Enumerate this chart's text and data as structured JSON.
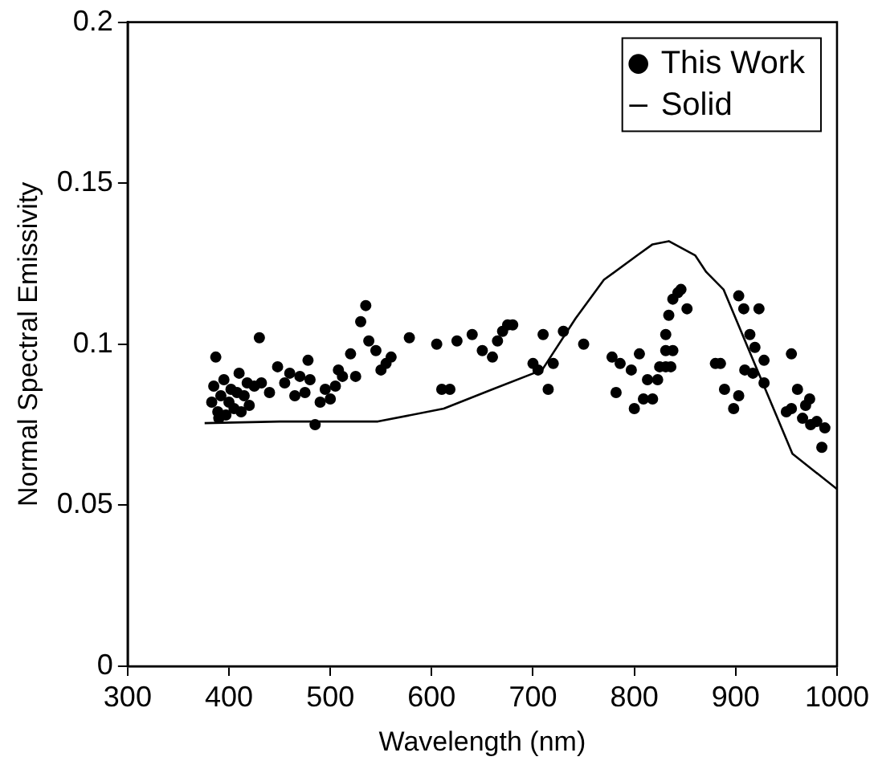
{
  "chart_data": {
    "type": "scatter",
    "xlabel": "Wavelength (nm)",
    "ylabel": "Normal Spectral Emissivity",
    "xlim": [
      300,
      1000
    ],
    "xticks": [
      300,
      400,
      500,
      600,
      700,
      800,
      900,
      1000
    ],
    "ylim": [
      0,
      0.2
    ],
    "yticks": [
      0,
      0.05,
      0.1,
      0.15,
      0.2
    ],
    "grid": false,
    "legend": "top right",
    "marker": "circle",
    "series": [
      {
        "name": "This Work",
        "type": "scatter",
        "color": "#000000",
        "x": [
          383,
          385,
          387,
          389,
          390,
          392,
          395,
          397,
          400,
          402,
          405,
          408,
          410,
          412,
          415,
          418,
          420,
          425,
          430,
          432,
          440,
          448,
          455,
          460,
          465,
          470,
          475,
          478,
          480,
          485,
          490,
          495,
          500,
          505,
          508,
          512,
          520,
          525,
          530,
          535,
          538,
          545,
          550,
          555,
          560,
          578,
          605,
          610,
          618,
          625,
          640,
          650,
          660,
          665,
          670,
          675,
          680,
          700,
          705,
          710,
          715,
          720,
          730,
          750,
          778,
          782,
          786,
          797,
          800,
          805,
          809,
          813,
          818,
          823,
          825,
          831,
          831,
          831,
          834,
          836,
          838,
          838,
          843,
          846,
          852,
          880,
          885,
          889,
          898,
          903,
          903,
          908,
          909,
          914,
          917,
          919,
          923,
          928,
          928,
          950,
          955,
          955,
          961,
          966,
          969,
          973,
          974,
          980,
          985,
          988
        ],
        "values": [
          0.082,
          0.087,
          0.096,
          0.079,
          0.077,
          0.084,
          0.089,
          0.078,
          0.082,
          0.086,
          0.08,
          0.085,
          0.091,
          0.079,
          0.084,
          0.088,
          0.081,
          0.087,
          0.102,
          0.088,
          0.085,
          0.093,
          0.088,
          0.091,
          0.084,
          0.09,
          0.085,
          0.095,
          0.089,
          0.075,
          0.082,
          0.086,
          0.083,
          0.087,
          0.092,
          0.09,
          0.097,
          0.09,
          0.107,
          0.112,
          0.101,
          0.098,
          0.092,
          0.094,
          0.096,
          0.102,
          0.1,
          0.086,
          0.086,
          0.101,
          0.103,
          0.098,
          0.096,
          0.101,
          0.104,
          0.106,
          0.106,
          0.094,
          0.092,
          0.103,
          0.086,
          0.094,
          0.104,
          0.1,
          0.096,
          0.085,
          0.094,
          0.092,
          0.08,
          0.097,
          0.083,
          0.089,
          0.083,
          0.089,
          0.093,
          0.093,
          0.098,
          0.103,
          0.109,
          0.093,
          0.098,
          0.114,
          0.116,
          0.117,
          0.111,
          0.094,
          0.094,
          0.086,
          0.08,
          0.084,
          0.115,
          0.111,
          0.092,
          0.103,
          0.091,
          0.099,
          0.111,
          0.095,
          0.088,
          0.079,
          0.08,
          0.097,
          0.086,
          0.077,
          0.081,
          0.083,
          0.075,
          0.076,
          0.068,
          0.074
        ]
      },
      {
        "name": "Solid",
        "type": "line",
        "color": "#000000",
        "marker": "none",
        "line_style": "solid",
        "x": [
          376,
          450,
          547,
          612,
          660,
          709,
          742,
          770,
          803,
          818,
          834,
          860,
          871,
          888,
          920,
          956,
          1000
        ],
        "values": [
          0.0755,
          0.076,
          0.076,
          0.08,
          0.086,
          0.092,
          0.108,
          0.12,
          0.1276,
          0.131,
          0.132,
          0.1276,
          0.1224,
          0.117,
          0.093,
          0.066,
          0.055
        ]
      }
    ]
  }
}
